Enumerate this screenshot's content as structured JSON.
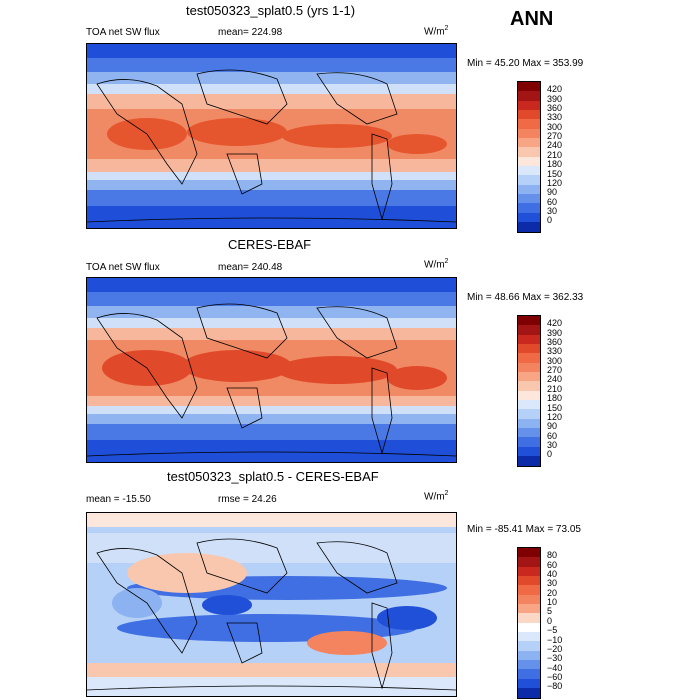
{
  "header": {
    "season": "ANN"
  },
  "panels": [
    {
      "title": "test050323_splat0.5 (yrs 1-1)",
      "left_text": "TOA net SW flux",
      "mid_text": "mean= 224.98",
      "unit_base": "W/m",
      "unit_exp": "2",
      "minmax": "Min =  45.20 Max = 353.99",
      "colorbar": {
        "levels": [
          "420",
          "390",
          "360",
          "330",
          "300",
          "270",
          "240",
          "210",
          "180",
          "150",
          "120",
          "90",
          "60",
          "30",
          "0"
        ],
        "colors": [
          "#7f0000",
          "#a31515",
          "#c8281e",
          "#e04a2a",
          "#f06a45",
          "#f4845f",
          "#f7a584",
          "#f9c6ae",
          "#fde7dc",
          "#dbe8fb",
          "#b6d1f7",
          "#8cb2f1",
          "#6691ea",
          "#3f6fe3",
          "#2050d7",
          "#0b2ba8"
        ]
      }
    },
    {
      "title": "CERES-EBAF",
      "left_text": "TOA net SW flux",
      "mid_text": "mean= 240.48",
      "unit_base": "W/m",
      "unit_exp": "2",
      "minmax": "Min =  48.66 Max = 362.33",
      "colorbar": {
        "levels": [
          "420",
          "390",
          "360",
          "330",
          "300",
          "270",
          "240",
          "210",
          "180",
          "150",
          "120",
          "90",
          "60",
          "30",
          "0"
        ],
        "colors": [
          "#7f0000",
          "#a31515",
          "#c8281e",
          "#e04a2a",
          "#f06a45",
          "#f4845f",
          "#f7a584",
          "#f9c6ae",
          "#fde7dc",
          "#dbe8fb",
          "#b6d1f7",
          "#8cb2f1",
          "#6691ea",
          "#3f6fe3",
          "#2050d7",
          "#0b2ba8"
        ]
      }
    },
    {
      "title": "test050323_splat0.5 - CERES-EBAF",
      "left_text": "mean = -15.50",
      "mid_text": "rmse =  24.26",
      "unit_base": "W/m",
      "unit_exp": "2",
      "minmax": "Min = -85.41 Max =  73.05",
      "colorbar": {
        "levels": [
          "80",
          "60",
          "40",
          "30",
          "20",
          "10",
          "5",
          "0",
          "−5",
          "−10",
          "−20",
          "−30",
          "−40",
          "−60",
          "−80"
        ],
        "colors": [
          "#7f0000",
          "#a31515",
          "#c8281e",
          "#e04a2a",
          "#f06a45",
          "#f4845f",
          "#f7a584",
          "#fbd7c6",
          "#ffffff",
          "#dbe8fb",
          "#b6d1f7",
          "#8cb2f1",
          "#6691ea",
          "#3f6fe3",
          "#2050d7",
          "#0b2ba8"
        ]
      }
    }
  ]
}
